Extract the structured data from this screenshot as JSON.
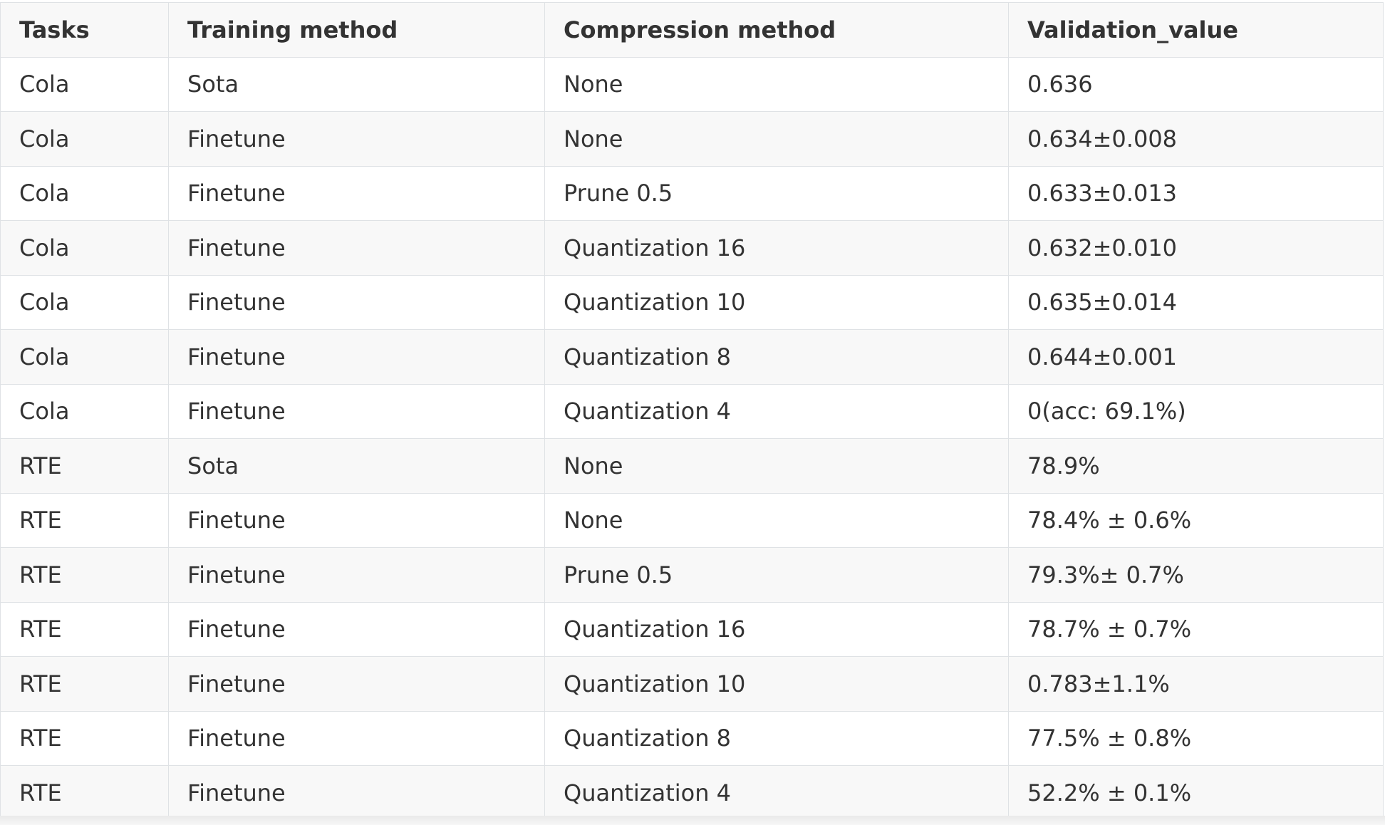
{
  "table": {
    "headers": [
      "Tasks",
      "Training method",
      "Compression method",
      "Validation_value"
    ],
    "rows": [
      [
        "Cola",
        "Sota",
        "None",
        "0.636"
      ],
      [
        "Cola",
        "Finetune",
        "None",
        "0.634±0.008"
      ],
      [
        "Cola",
        "Finetune",
        "Prune 0.5",
        "0.633±0.013"
      ],
      [
        "Cola",
        "Finetune",
        "Quantization 16",
        "0.632±0.010"
      ],
      [
        "Cola",
        "Finetune",
        "Quantization 10",
        "0.635±0.014"
      ],
      [
        "Cola",
        "Finetune",
        "Quantization 8",
        "0.644±0.001"
      ],
      [
        "Cola",
        "Finetune",
        "Quantization 4",
        "0(acc: 69.1%)"
      ],
      [
        "RTE",
        "Sota",
        "None",
        "78.9%"
      ],
      [
        "RTE",
        "Finetune",
        "None",
        "78.4% ± 0.6%"
      ],
      [
        "RTE",
        "Finetune",
        "Prune 0.5",
        "79.3%± 0.7%"
      ],
      [
        "RTE",
        "Finetune",
        "Quantization 16",
        "78.7% ± 0.7%"
      ],
      [
        "RTE",
        "Finetune",
        "Quantization 10",
        "0.783±1.1%"
      ],
      [
        "RTE",
        "Finetune",
        "Quantization 8",
        "77.5% ± 0.8%"
      ],
      [
        "RTE",
        "Finetune",
        "Quantization 4",
        "52.2% ± 0.1%"
      ]
    ]
  }
}
